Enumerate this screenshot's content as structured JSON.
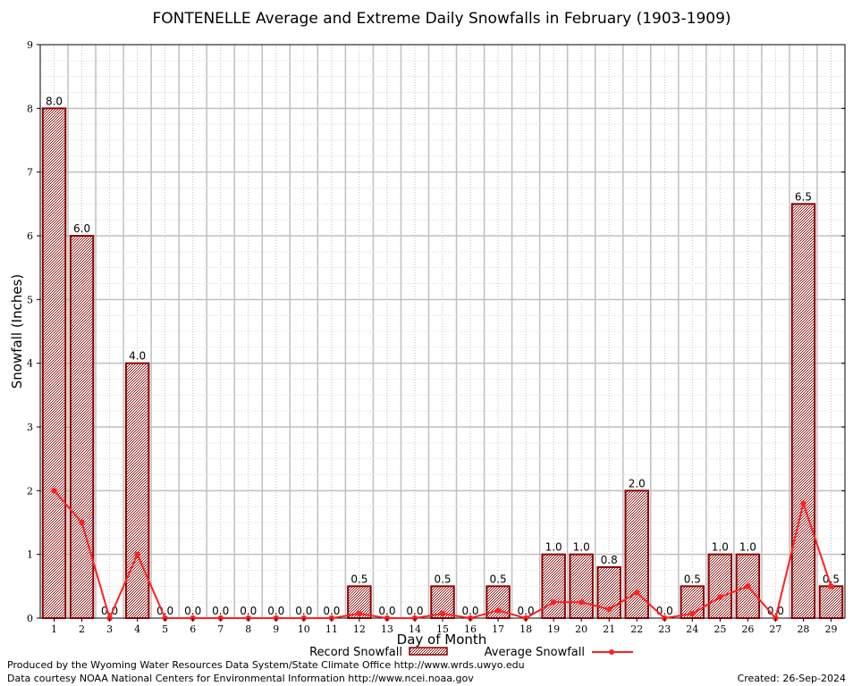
{
  "colors": {
    "bar_stroke": "#8b0000",
    "bar_fill": "#c08080",
    "avg_line": "#ff2020",
    "grid": "#c0c0c0",
    "background": "#ffffff"
  },
  "footer": {
    "line1": "Produced by the Wyoming Water Resources Data System/State Climate Office http://www.wrds.uwyo.edu",
    "line2": "Data courtesy NOAA National Centers for Environmental Information http://www.ncei.noaa.gov",
    "created": "Created: 26-Sep-2024"
  },
  "chart_data": {
    "type": "bar",
    "title": "FONTENELLE Average and Extreme Daily Snowfalls in February (1903-1909)",
    "xlabel": "Day of Month",
    "ylabel": "Snowfall (Inches)",
    "ylim": [
      0,
      9
    ],
    "yticks": [
      "0",
      "1",
      "2",
      "3",
      "4",
      "5",
      "6",
      "7",
      "8",
      "9"
    ],
    "grid": true,
    "legend_position": "bottom",
    "categories": [
      "1",
      "2",
      "3",
      "4",
      "5",
      "6",
      "7",
      "8",
      "9",
      "10",
      "11",
      "12",
      "13",
      "14",
      "15",
      "16",
      "17",
      "18",
      "19",
      "20",
      "21",
      "22",
      "23",
      "24",
      "25",
      "26",
      "27",
      "28",
      "29"
    ],
    "series": [
      {
        "name": "Record Snowfall",
        "kind": "bar",
        "values": [
          8.0,
          6.0,
          0.0,
          4.0,
          0.0,
          0.0,
          0.0,
          0.0,
          0.0,
          0.0,
          0.0,
          0.5,
          0.0,
          0.0,
          0.5,
          0.0,
          0.5,
          0.0,
          1.0,
          1.0,
          0.8,
          2.0,
          0.0,
          0.5,
          1.0,
          1.0,
          0.0,
          6.5,
          0.5
        ],
        "labels": [
          "8.0",
          "6.0",
          "0.0",
          "4.0",
          "0.0",
          "0.0",
          "0.0",
          "0.0",
          "0.0",
          "0.0",
          "0.0",
          "0.5",
          "0.0",
          "0.0",
          "0.5",
          "0.0",
          "0.5",
          "0.0",
          "1.0",
          "1.0",
          "0.8",
          "2.0",
          "0.0",
          "0.5",
          "1.0",
          "1.0",
          "0.0",
          "6.5",
          "0.5"
        ]
      },
      {
        "name": "Average Snowfall",
        "kind": "line",
        "values": [
          2.0,
          1.5,
          0.0,
          1.0,
          0.0,
          0.0,
          0.0,
          0.0,
          0.0,
          0.0,
          0.0,
          0.07,
          0.0,
          0.0,
          0.07,
          0.0,
          0.12,
          0.0,
          0.25,
          0.25,
          0.14,
          0.4,
          0.0,
          0.07,
          0.33,
          0.5,
          0.0,
          1.8,
          0.5
        ]
      }
    ]
  }
}
